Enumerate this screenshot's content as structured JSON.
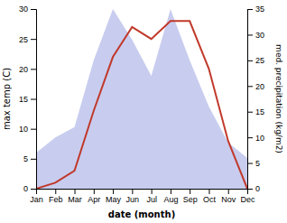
{
  "chart_data": {
    "type": "line",
    "xlabel": "date (month)",
    "ylabel": "max temp (C)",
    "y2label": "med. precipitation (kg/m2)",
    "categories": [
      "Jan",
      "Feb",
      "Mar",
      "Apr",
      "May",
      "Jun",
      "Jul",
      "Aug",
      "Sep",
      "Oct",
      "Nov",
      "Dec"
    ],
    "series": [
      {
        "type": "area",
        "axis": "y2",
        "color": "#b0b8e8",
        "values": [
          7,
          10,
          12,
          25,
          35,
          29,
          22,
          35,
          25,
          16,
          9,
          6
        ]
      },
      {
        "type": "line",
        "color": "#c0392b",
        "values": [
          0,
          1,
          3,
          13,
          22,
          27,
          25,
          28,
          28,
          20,
          8,
          0
        ]
      }
    ],
    "ylim": [
      0,
      30
    ],
    "yticks": [
      0,
      5,
      10,
      15,
      20,
      25,
      30
    ],
    "y2lim": [
      0,
      35
    ],
    "y2ticks": [
      0,
      5,
      10,
      15,
      20,
      25,
      30,
      35
    ],
    "grid": false
  }
}
